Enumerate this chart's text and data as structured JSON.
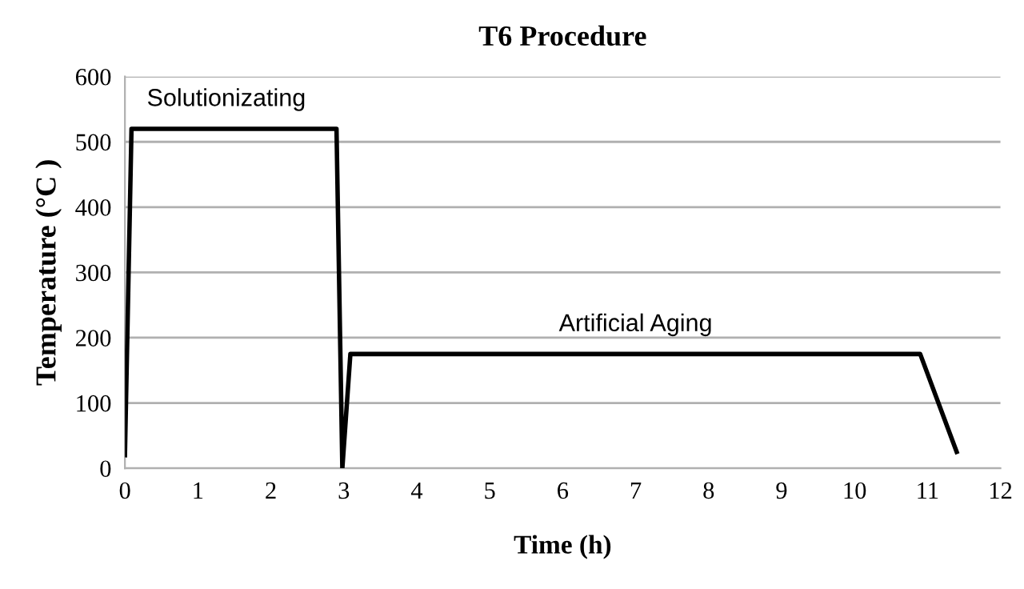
{
  "chart_data": {
    "type": "line",
    "title": "T6 Procedure",
    "xlabel": "Time (h)",
    "ylabel": "Temperature (°C )",
    "x": [
      0,
      0.09,
      2.9,
      2.98,
      3.09,
      10.9,
      11.4
    ],
    "series": [
      {
        "color": "#000000",
        "values": [
          20,
          520,
          520,
          0,
          175,
          175,
          25
        ]
      }
    ],
    "xlim": [
      0,
      12
    ],
    "xticks": [
      0,
      1,
      2,
      3,
      4,
      5,
      6,
      7,
      8,
      9,
      10,
      11,
      12
    ],
    "ylim": [
      0,
      600
    ],
    "yticks": [
      0,
      100,
      200,
      300,
      400,
      500,
      600
    ],
    "grid": "y",
    "legend": false,
    "marker": "none",
    "line_style": "solid",
    "annotations": [
      {
        "text": "Solutionizating",
        "x": 0.3,
        "y": 520
      },
      {
        "text": "Artificial Aging",
        "x": 7,
        "y": 175
      }
    ]
  }
}
